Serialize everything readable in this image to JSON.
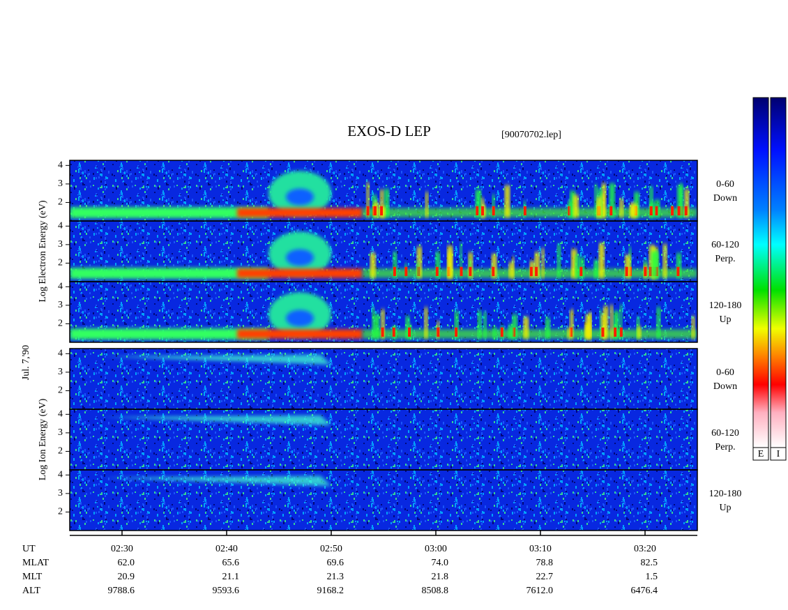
{
  "chart_data": {
    "type": "spectrogram",
    "title": "EXOS-D LEP",
    "subtitle": "[90070702.lep]",
    "date_label": "Jul. 7,'90",
    "xlim": [
      "02:25",
      "03:25"
    ],
    "xticks": [
      "02:30",
      "02:40",
      "02:50",
      "03:00",
      "03:10",
      "03:20"
    ],
    "x_label": "UT",
    "ylim": [
      1,
      4.2
    ],
    "yticks": [
      2,
      3,
      4
    ],
    "groups": [
      {
        "name": "Electron",
        "ylabel": "Log Electron Energy (eV)",
        "panels": [
          {
            "label": "0-60",
            "sublabel": "Down"
          },
          {
            "label": "60-120",
            "sublabel": "Perp."
          },
          {
            "label": "120-180",
            "sublabel": "Up"
          }
        ]
      },
      {
        "name": "Ion",
        "ylabel": "Log Ion Energy (eV)",
        "panels": [
          {
            "label": "0-60",
            "sublabel": "Down"
          },
          {
            "label": "60-120",
            "sublabel": "Perp."
          },
          {
            "label": "120-180",
            "sublabel": "Up"
          }
        ]
      }
    ],
    "ephemeris": [
      {
        "name": "MLAT",
        "values": [
          "62.0",
          "65.6",
          "69.6",
          "74.0",
          "78.8",
          "82.5"
        ]
      },
      {
        "name": "MLT",
        "values": [
          "20.9",
          "21.1",
          "21.3",
          "21.8",
          "22.7",
          "1.5"
        ]
      },
      {
        "name": "ALT",
        "values": [
          "9788.6",
          "9593.6",
          "9168.2",
          "8508.8",
          "7612.0",
          "6476.4"
        ]
      }
    ],
    "colorbars": [
      "E",
      "I"
    ]
  }
}
